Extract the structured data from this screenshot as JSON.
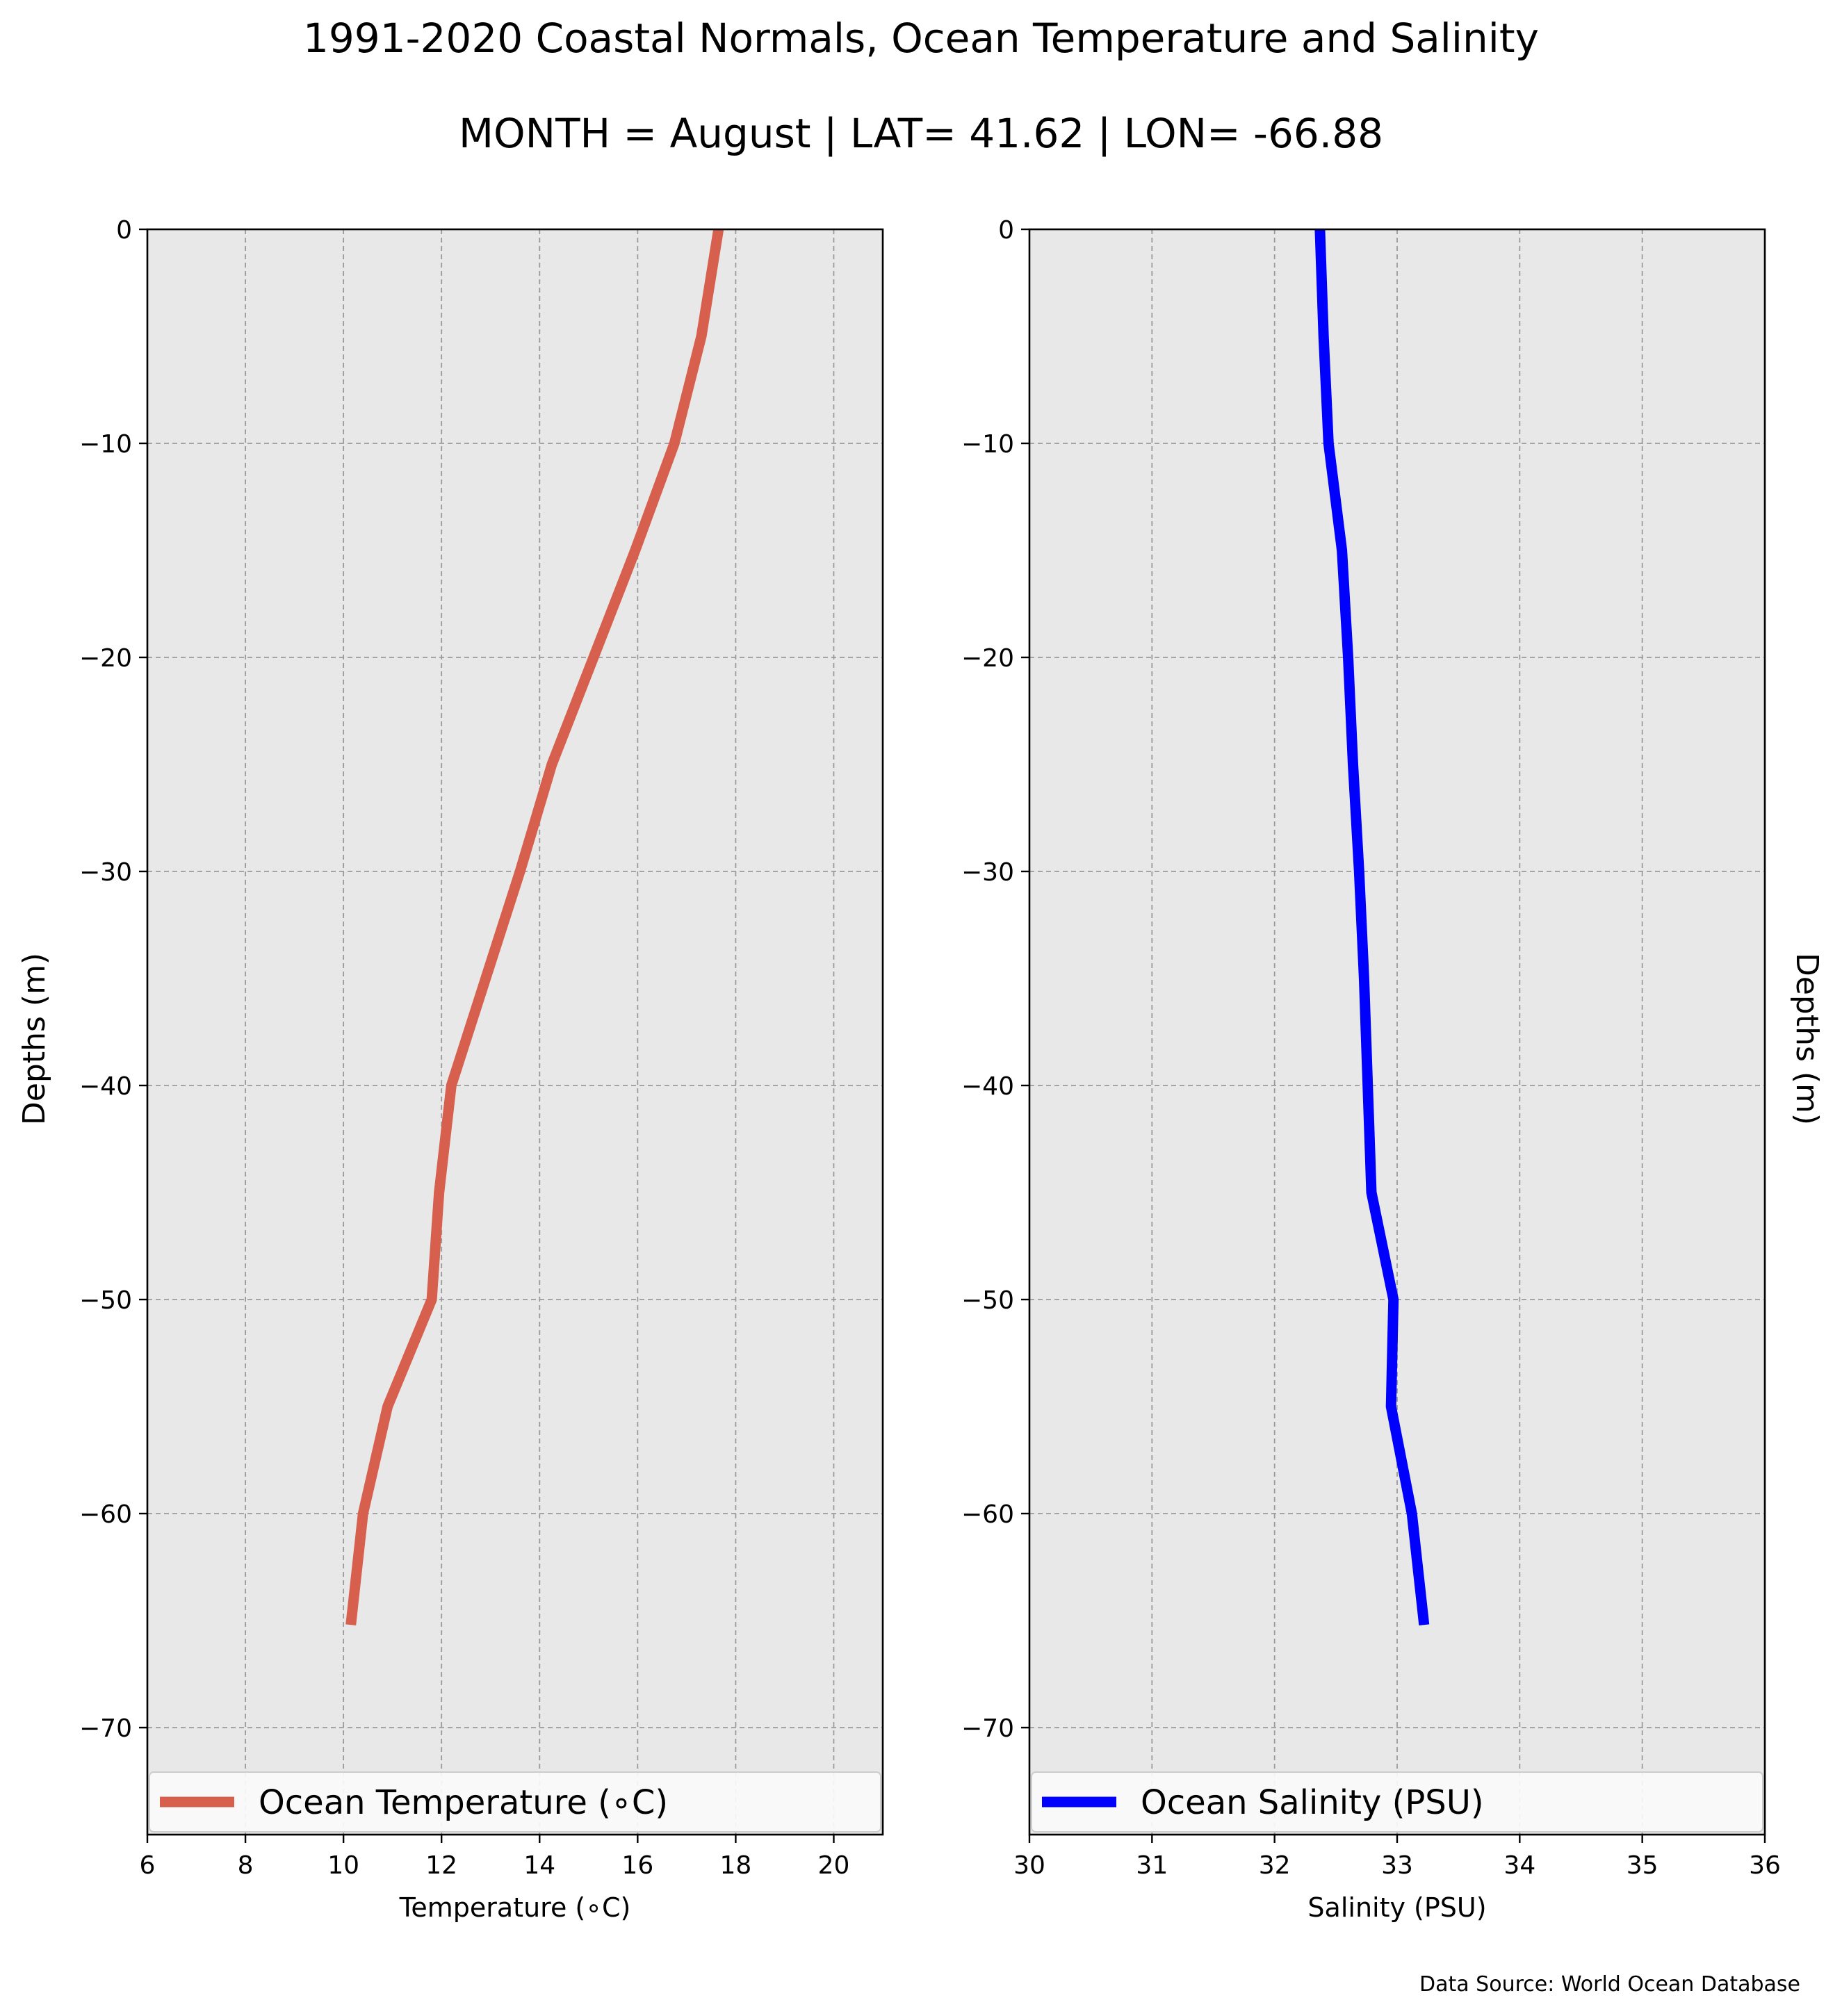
{
  "page": {
    "title": "1991-2020 Coastal Normals, Ocean Temperature and Salinity",
    "subtitle": "MONTH = August | LAT= 41.62 | LON= -66.88",
    "source": "Data Source: World Ocean Database"
  },
  "chart_data": [
    {
      "type": "line",
      "xlabel": "Temperature (∘C)",
      "ylabel": "Depths (m)",
      "ylabel_side": "left",
      "xlim": [
        6,
        21
      ],
      "ylim": [
        -75,
        0
      ],
      "xticks": [
        6,
        8,
        10,
        12,
        14,
        16,
        18,
        20
      ],
      "yticks": [
        0,
        -10,
        -20,
        -30,
        -40,
        -50,
        -60,
        -70
      ],
      "grid": true,
      "legend_position": "bottom",
      "series": [
        {
          "name": "Ocean Temperature (∘C)",
          "color": "#d6604d",
          "x": [
            17.65,
            17.3,
            16.75,
            15.95,
            15.1,
            14.25,
            13.6,
            12.9,
            12.2,
            11.95,
            11.8,
            10.9,
            10.4,
            10.15
          ],
          "y": [
            0,
            -5,
            -10,
            -15,
            -20,
            -25,
            -30,
            -35,
            -40,
            -45,
            -50,
            -55,
            -60,
            -65.2
          ]
        }
      ]
    },
    {
      "type": "line",
      "xlabel": "Salinity (PSU)",
      "ylabel": "Depths (m)",
      "ylabel_side": "right",
      "xlim": [
        30,
        36
      ],
      "ylim": [
        -75,
        0
      ],
      "xticks": [
        30,
        31,
        32,
        33,
        34,
        35,
        36
      ],
      "yticks": [
        0,
        -10,
        -20,
        -30,
        -40,
        -50,
        -60,
        -70
      ],
      "grid": true,
      "legend_position": "bottom",
      "series": [
        {
          "name": "Ocean Salinity (PSU)",
          "color": "#0000ff",
          "x": [
            32.37,
            32.4,
            32.44,
            32.55,
            32.6,
            32.64,
            32.69,
            32.73,
            32.76,
            32.79,
            32.97,
            32.95,
            33.12,
            33.22
          ],
          "y": [
            0,
            -5,
            -10,
            -15,
            -20,
            -25,
            -30,
            -35,
            -40,
            -45,
            -50,
            -55,
            -60,
            -65.2
          ]
        }
      ]
    }
  ]
}
